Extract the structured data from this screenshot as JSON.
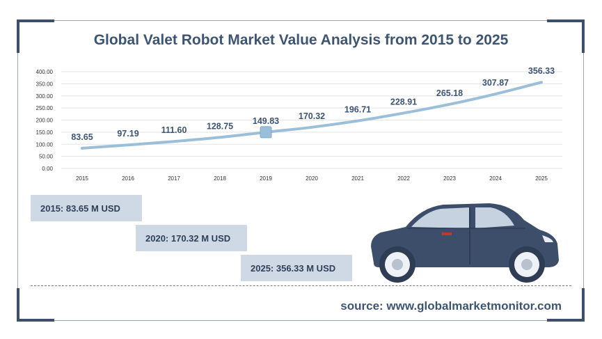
{
  "title": "Global Valet Robot Market Value Analysis from 2015 to 2025",
  "highlights": [
    "2015: 83.65 M USD",
    "2020: 170.32 M USD",
    "2025: 356.33 M USD"
  ],
  "source": "source: www.globalmarketmonitor.com",
  "colors": {
    "line": "#9bbfd9",
    "marker": "#9bbfd9",
    "title": "#3d5573",
    "box": "#cfd9e6",
    "car": "#3d4e6b"
  },
  "icons": [
    "car-icon"
  ],
  "chart_data": {
    "type": "line",
    "title": "Global Valet Robot Market Value Analysis from 2015 to 2025",
    "xlabel": "",
    "ylabel": "",
    "categories": [
      "2015",
      "2016",
      "2017",
      "2018",
      "2019",
      "2020",
      "2021",
      "2022",
      "2023",
      "2024",
      "2025"
    ],
    "values": [
      83.65,
      97.19,
      111.6,
      128.75,
      149.83,
      170.32,
      196.71,
      228.91,
      265.18,
      307.87,
      356.33
    ],
    "data_labels": [
      "83.65",
      "97.19",
      "111.60",
      "128.75",
      "149.83",
      "170.32",
      "196.71",
      "228.91",
      "265.18",
      "307.87",
      "356.33"
    ],
    "yticks": [
      "0.00",
      "50.00",
      "100.00",
      "150.00",
      "200.00",
      "250.00",
      "300.00",
      "350.00",
      "400.00"
    ],
    "ylim": [
      0,
      400
    ],
    "grid": true,
    "highlighted_point": "2019"
  }
}
